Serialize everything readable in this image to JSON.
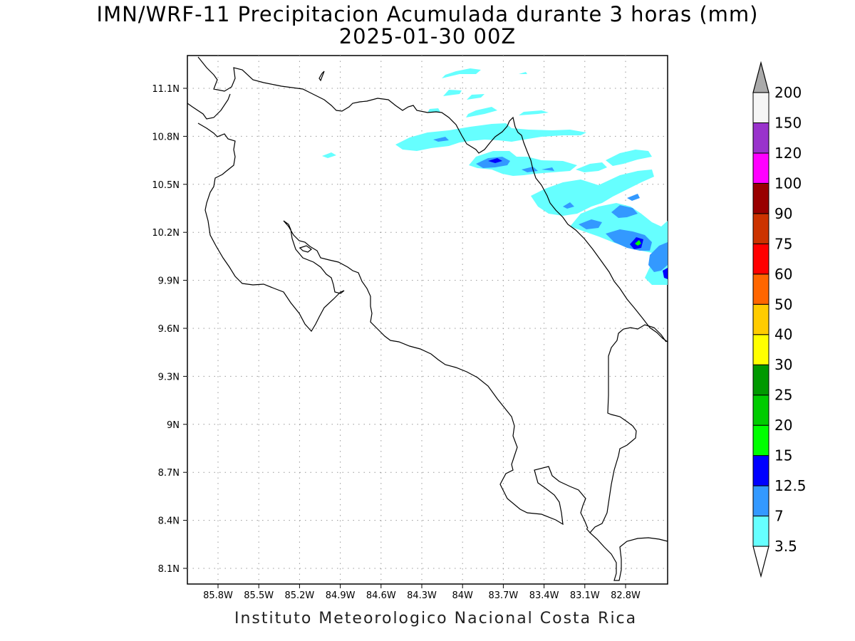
{
  "title_line1": "IMN/WRF-11 Precipitacion Acumulada durante 3 horas (mm)",
  "title_line2": "2025-01-30 00Z",
  "footer": "Instituto Meteorologico Nacional Costa Rica",
  "map": {
    "lon_range": [
      -86.05,
      -82.6
    ],
    "lat_range": [
      8.0,
      11.3
    ],
    "lat_ticks": [
      "11.1N",
      "10.8N",
      "10.5N",
      "10.2N",
      "9.9N",
      "9.6N",
      "9.3N",
      "9N",
      "8.7N",
      "8.4N",
      "8.1N"
    ],
    "lon_ticks": [
      "85.8W",
      "85.5W",
      "85.2W",
      "84.9W",
      "84.6W",
      "84.3W",
      "84W",
      "83.7W",
      "83.4W",
      "83.1W",
      "82.8W"
    ]
  },
  "colorbar": {
    "labels": [
      "3.5",
      "7",
      "12.5",
      "15",
      "20",
      "25",
      "30",
      "40",
      "50",
      "60",
      "75",
      "90",
      "100",
      "120",
      "150",
      "200"
    ],
    "colors": [
      "#66ffff",
      "#3399ff",
      "#0000ff",
      "#00ff00",
      "#00cc00",
      "#009900",
      "#ffff00",
      "#ffcc00",
      "#ff6600",
      "#ff0000",
      "#cc3300",
      "#990000",
      "#ff00ff",
      "#9933cc",
      "#f5f5f5"
    ],
    "over_color": "#aaaaaa",
    "under_color": "#ffffff"
  }
}
